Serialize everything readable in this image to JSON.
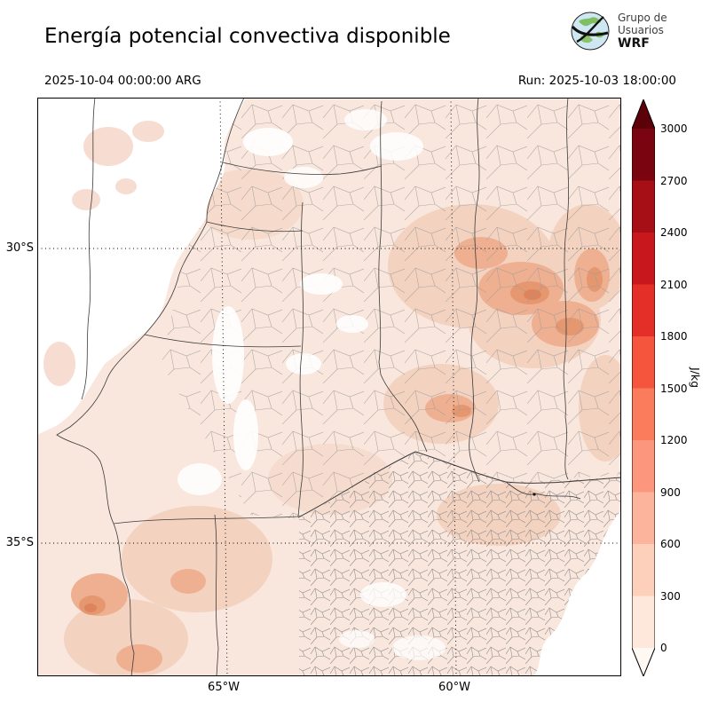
{
  "header": {
    "title": "Energía potencial convectiva disponible",
    "valid_time": "2025-10-04 00:00:00 ARG",
    "run_label": "Run: 2025-10-03 18:00:00",
    "logo": {
      "line1": "Grupo de",
      "line2": "Usuarios",
      "line3": "WRF"
    }
  },
  "map": {
    "lat_labels": [
      "30°S",
      "35°S"
    ],
    "lon_labels": [
      "65°W",
      "60°W"
    ]
  },
  "colorbar": {
    "unit": "J/kg",
    "ticks": [
      "0",
      "300",
      "600",
      "900",
      "1200",
      "1500",
      "1800",
      "2100",
      "2400",
      "2700",
      "3000"
    ],
    "segment_colors_bottom_to_top": [
      "#fee8dc",
      "#fdd0bc",
      "#fcb49c",
      "#fc977e",
      "#fb7c5c",
      "#f5553d",
      "#e32f27",
      "#c9181d",
      "#a50f15",
      "#7a0510"
    ],
    "under_color": "#fff8f3",
    "over_color": "#5c000a"
  }
}
